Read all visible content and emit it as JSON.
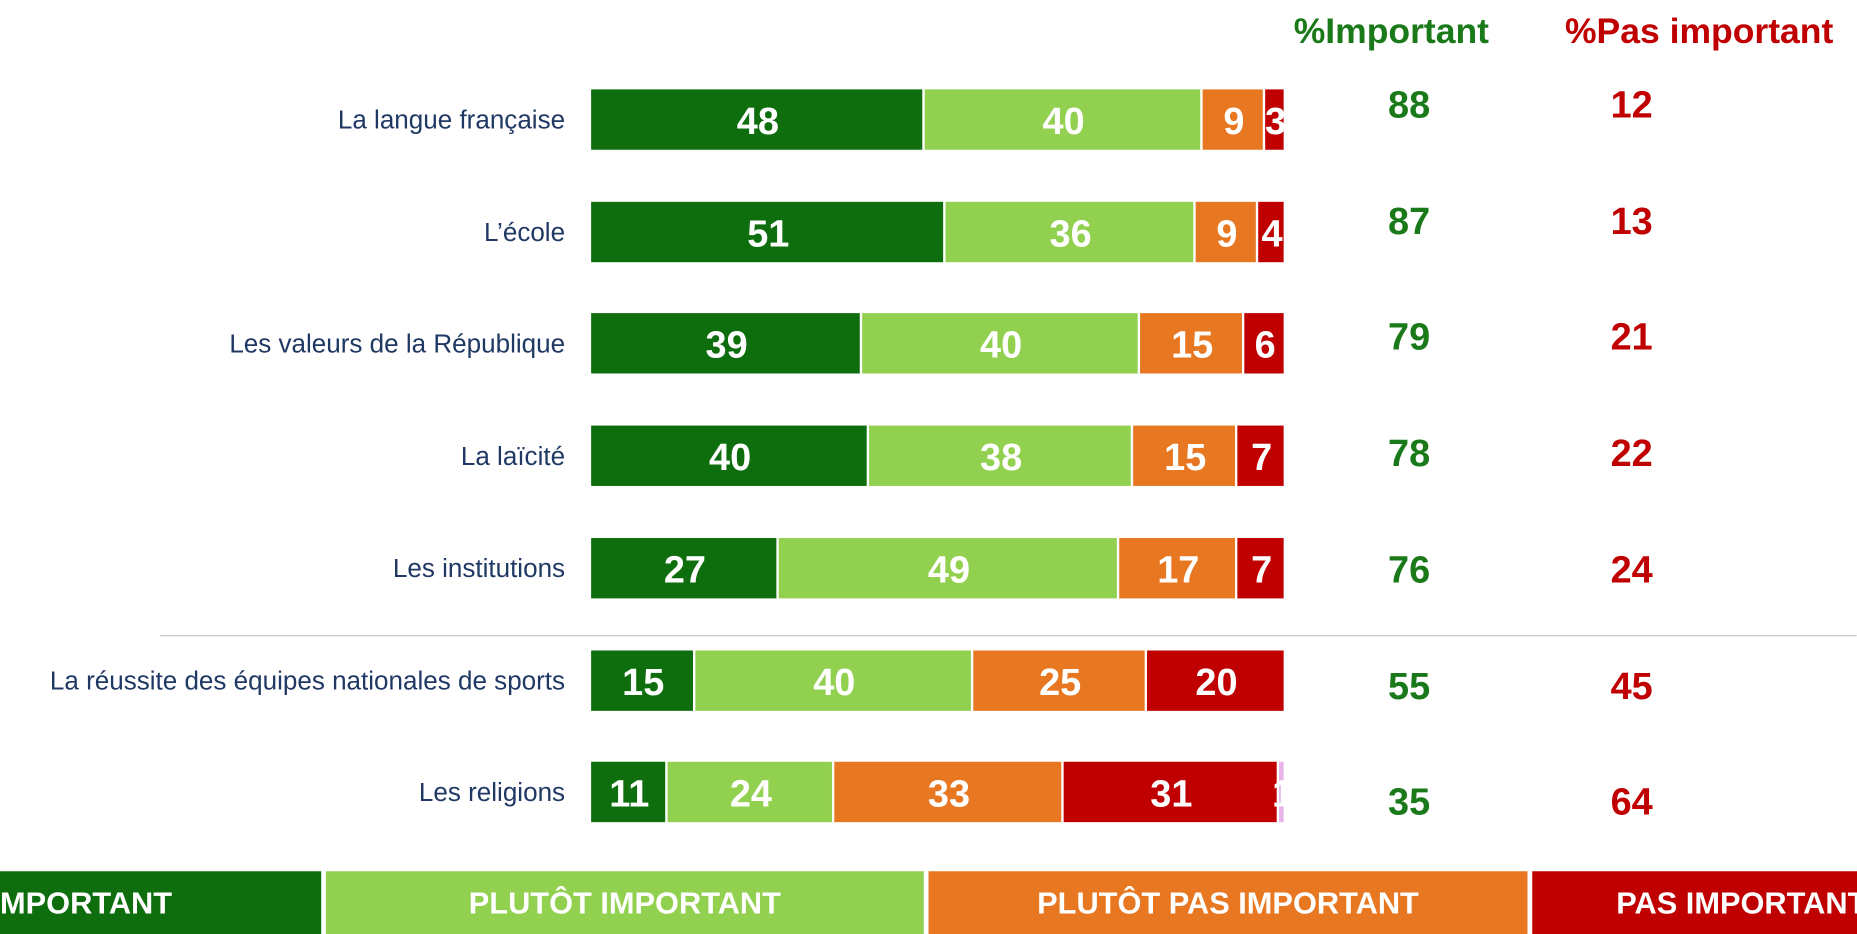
{
  "chart_data": {
    "type": "bar",
    "orientation": "horizontal",
    "stacked": true,
    "categories": [
      "La langue française",
      "L’école",
      "Les valeurs de la République",
      "La laïcité",
      "Les institutions",
      "La réussite des équipes nationales de sports",
      "Les religions"
    ],
    "series": [
      {
        "name": "TRÈS IMPORTANT",
        "color": "#0e6e0e",
        "values": [
          48,
          51,
          39,
          40,
          27,
          15,
          11
        ]
      },
      {
        "name": "PLUTÔT IMPORTANT",
        "color": "#92d050",
        "values": [
          40,
          36,
          40,
          38,
          49,
          40,
          24
        ]
      },
      {
        "name": "PLUTÔT PAS IMPORTANT",
        "color": "#e87722",
        "values": [
          9,
          9,
          15,
          15,
          17,
          25,
          33
        ]
      },
      {
        "name": "PAS IMPORTANT",
        "color": "#c00000",
        "values": [
          3,
          4,
          6,
          7,
          7,
          20,
          31
        ]
      },
      {
        "color": "#e8b4e8",
        "values": [
          null,
          null,
          null,
          null,
          null,
          null,
          1
        ]
      }
    ],
    "xlim": [
      0,
      100
    ],
    "totals": [
      {
        "label": "%Important",
        "color": "#1a7a1a",
        "values": [
          88,
          87,
          79,
          78,
          76,
          55,
          35
        ]
      },
      {
        "label": "%Pas important",
        "color": "#c00000",
        "values": [
          12,
          13,
          21,
          22,
          24,
          45,
          64
        ]
      }
    ]
  }
}
